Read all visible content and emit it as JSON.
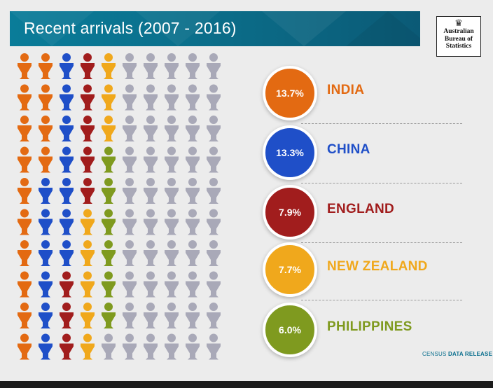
{
  "header": {
    "title": "Recent arrivals (2007 - 2016)"
  },
  "logo": {
    "lines": [
      "Australian",
      "Bureau of",
      "Statistics"
    ]
  },
  "chart_data": {
    "type": "pictograph",
    "title": "Recent arrivals (2007 - 2016)",
    "grid": {
      "columns": 10,
      "rows": 10,
      "unit_percent": 1
    },
    "other_color": "#a9a9b8",
    "series": [
      {
        "name": "INDIA",
        "label": "13.7%",
        "value": 13.7,
        "color": "#e36a12"
      },
      {
        "name": "CHINA",
        "label": "13.3%",
        "value": 13.3,
        "color": "#1f4fc8"
      },
      {
        "name": "ENGLAND",
        "label": "7.9%",
        "value": 7.9,
        "color": "#a11d1d"
      },
      {
        "name": "NEW ZEALAND",
        "label": "7.7%",
        "value": 7.7,
        "color": "#f0a81c"
      },
      {
        "name": "PHILIPPINES",
        "label": "6.0%",
        "value": 6.0,
        "color": "#7f9a1f"
      }
    ]
  },
  "footer": {
    "prefix": "CENSUS ",
    "suffix": "DATA RELEASE"
  }
}
